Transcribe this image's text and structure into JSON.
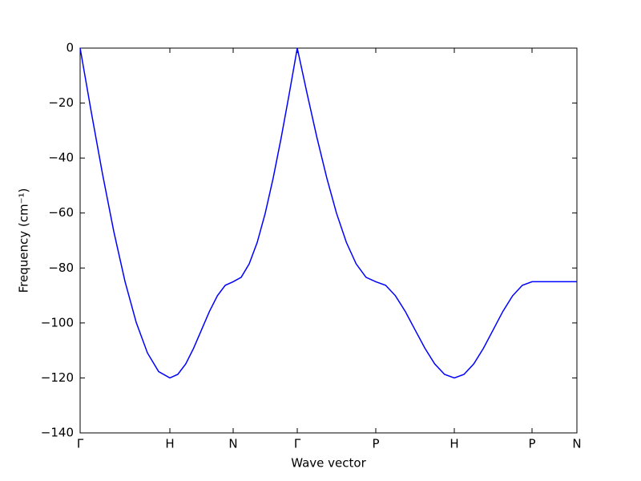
{
  "chart_data": {
    "type": "line",
    "xlabel": "Wave vector",
    "ylabel": "Frequency (cm⁻¹)",
    "x": [
      0,
      14,
      28,
      42,
      56,
      70,
      84,
      98,
      112,
      121.9,
      131.8,
      141.6,
      151.5,
      161.4,
      171.3,
      181.1,
      191,
      201,
      211,
      221,
      231,
      241,
      251,
      261,
      271,
      283.3,
      295.5,
      307.8,
      320,
      332.3,
      344.5,
      356.8,
      369,
      381.3,
      393.5,
      405.8,
      418,
      430.3,
      442.5,
      454.8,
      467,
      479.1,
      491.3,
      503.4,
      515.5,
      527.6,
      539.8,
      551.9,
      564,
      620
    ],
    "series": [
      {
        "color": "#0000ff",
        "values": [
          0,
          -23.4,
          -45.9,
          -66.7,
          -84.9,
          -99.8,
          -110.9,
          -117.7,
          -120,
          -118.7,
          -114.9,
          -109.2,
          -102.5,
          -95.8,
          -90.1,
          -86.3,
          -85,
          -83.4,
          -78.5,
          -70.7,
          -60.1,
          -47.2,
          -32.5,
          -16.6,
          0,
          -16.6,
          -32.5,
          -47.2,
          -60.1,
          -70.7,
          -78.5,
          -83.4,
          -85,
          -86.3,
          -90.1,
          -95.8,
          -102.5,
          -109.2,
          -114.9,
          -118.7,
          -120,
          -118.7,
          -114.9,
          -109.2,
          -102.5,
          -95.8,
          -90.1,
          -86.3,
          -85,
          -85
        ]
      }
    ],
    "xlim": [
      0,
      620
    ],
    "xticks": [
      {
        "value": 0,
        "label": "Γ"
      },
      {
        "value": 112,
        "label": "H"
      },
      {
        "value": 191,
        "label": "N"
      },
      {
        "value": 271,
        "label": "Γ"
      },
      {
        "value": 369,
        "label": "P"
      },
      {
        "value": 467,
        "label": "H"
      },
      {
        "value": 564,
        "label": "P"
      },
      {
        "value": 620,
        "label": "N"
      }
    ],
    "ylim": [
      -140,
      0
    ],
    "yticks": [
      {
        "value": -140,
        "label": "−140"
      },
      {
        "value": -120,
        "label": "−120"
      },
      {
        "value": -100,
        "label": "−100"
      },
      {
        "value": -80,
        "label": "−80"
      },
      {
        "value": -60,
        "label": "−60"
      },
      {
        "value": -40,
        "label": "−40"
      },
      {
        "value": -20,
        "label": "−20"
      },
      0
    ],
    "grid": false
  }
}
